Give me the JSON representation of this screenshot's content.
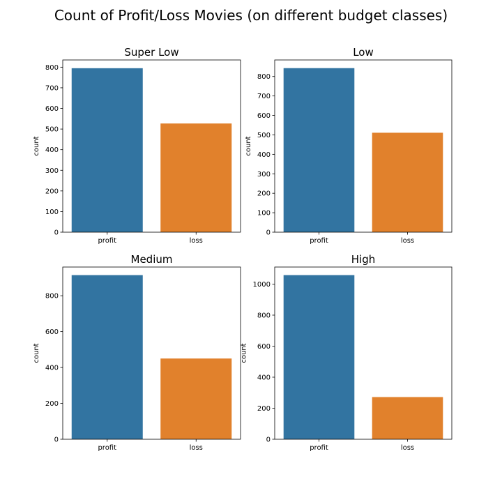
{
  "title": "Count of Profit/Loss Movies (on different budget classes)",
  "chart_data": [
    {
      "type": "bar",
      "title": "Super Low",
      "categories": [
        "profit",
        "loss"
      ],
      "values": [
        795,
        527
      ],
      "xlabel": "",
      "ylabel": "count",
      "ylim": [
        0,
        835
      ],
      "yticks": [
        0,
        100,
        200,
        300,
        400,
        500,
        600,
        700,
        800
      ],
      "colors": [
        "#3274a1",
        "#e1812c"
      ]
    },
    {
      "type": "bar",
      "title": "Low",
      "categories": [
        "profit",
        "loss"
      ],
      "values": [
        843,
        511
      ],
      "xlabel": "",
      "ylabel": "count",
      "ylim": [
        0,
        885
      ],
      "yticks": [
        0,
        100,
        200,
        300,
        400,
        500,
        600,
        700,
        800
      ],
      "colors": [
        "#3274a1",
        "#e1812c"
      ]
    },
    {
      "type": "bar",
      "title": "Medium",
      "categories": [
        "profit",
        "loss"
      ],
      "values": [
        915,
        450
      ],
      "xlabel": "",
      "ylabel": "count",
      "ylim": [
        0,
        960
      ],
      "yticks": [
        0,
        200,
        400,
        600,
        800
      ],
      "colors": [
        "#3274a1",
        "#e1812c"
      ]
    },
    {
      "type": "bar",
      "title": "High",
      "categories": [
        "profit",
        "loss"
      ],
      "values": [
        1058,
        272
      ],
      "xlabel": "",
      "ylabel": "count",
      "ylim": [
        0,
        1110
      ],
      "yticks": [
        0,
        200,
        400,
        600,
        800,
        1000
      ],
      "colors": [
        "#3274a1",
        "#e1812c"
      ]
    }
  ]
}
